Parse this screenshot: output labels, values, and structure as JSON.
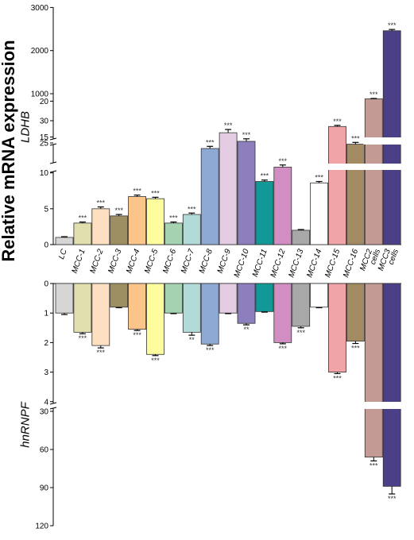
{
  "y_main_label": "Relative mRNA expression",
  "chart_data": [
    {
      "type": "bar",
      "gene": "LDHB",
      "ylabel": "LDHB",
      "y_ticks": [
        {
          "label": "3000",
          "value": 3000
        },
        {
          "label": "2000",
          "value": 2000
        },
        {
          "label": "1000",
          "value": 1000
        },
        {
          "label": "30",
          "value": 30
        },
        {
          "label": "25",
          "value": 25
        },
        {
          "label": "20",
          "value": 20
        },
        {
          "label": "15",
          "value": 15
        },
        {
          "label": "10",
          "value": 10
        },
        {
          "label": "5",
          "value": 5
        },
        {
          "label": "0",
          "value": 0
        }
      ],
      "axis_breaks": [
        [
          20,
          25
        ],
        [
          30,
          700
        ]
      ],
      "categories": [
        "LC",
        "MCC-1",
        "MCC-2",
        "MCC-3",
        "MCC-4",
        "MCC-5",
        "MCC-6",
        "MCC-7",
        "MCC-8",
        "MCC-9",
        "MCC-10",
        "MCC-11",
        "MCC-12",
        "MCC-13",
        "MCC-14",
        "MCC-15",
        "MCC-16",
        "MCC2 cells",
        "MCC3 cells"
      ],
      "values": [
        1.0,
        3.0,
        5.0,
        4.0,
        6.7,
        6.4,
        3.0,
        4.2,
        13.4,
        15.6,
        14.4,
        8.8,
        10.8,
        2.0,
        8.6,
        28.7,
        14.0,
        880,
        2460
      ],
      "errors": [
        0.1,
        0.15,
        0.25,
        0.2,
        0.2,
        0.2,
        0.15,
        0.2,
        0.3,
        0.45,
        0.35,
        0.2,
        0.3,
        0.1,
        0.2,
        0.25,
        0.25,
        10,
        30
      ],
      "significance": [
        "",
        "***",
        "***",
        "***",
        "***",
        "***",
        "***",
        "***",
        "***",
        "***",
        "***",
        "***",
        "***",
        "",
        "***",
        "***",
        "***",
        "***",
        "***"
      ]
    },
    {
      "type": "bar",
      "gene": "hnRNPF",
      "ylabel": "hnRNPF",
      "orientation": "inverted",
      "y_ticks": [
        {
          "label": "0",
          "value": 0
        },
        {
          "label": "1",
          "value": 1
        },
        {
          "label": "2",
          "value": 2
        },
        {
          "label": "3",
          "value": 3
        },
        {
          "label": "4",
          "value": 4
        },
        {
          "label": "30",
          "value": 30
        },
        {
          "label": "60",
          "value": 60
        },
        {
          "label": "90",
          "value": 90
        },
        {
          "label": "120",
          "value": 120
        }
      ],
      "axis_breaks": [
        [
          4,
          30
        ]
      ],
      "categories": [
        "LC",
        "MCC-1",
        "MCC-2",
        "MCC-3",
        "MCC-4",
        "MCC-5",
        "MCC-6",
        "MCC-7",
        "MCC-8",
        "MCC-9",
        "MCC-10",
        "MCC-11",
        "MCC-12",
        "MCC-13",
        "MCC-14",
        "MCC-15",
        "MCC-16",
        "MCC2 cells",
        "MCC3 cells"
      ],
      "values": [
        1.0,
        1.65,
        2.1,
        0.8,
        1.55,
        2.4,
        1.0,
        1.65,
        2.05,
        1.0,
        1.35,
        0.95,
        2.0,
        1.45,
        0.8,
        3.0,
        1.95,
        66,
        89
      ],
      "errors": [
        0.05,
        0.05,
        0.08,
        0.02,
        0.04,
        0.04,
        0.02,
        0.1,
        0.05,
        0.02,
        0.05,
        0.02,
        0.04,
        0.05,
        0.02,
        0.05,
        0.08,
        3,
        6
      ],
      "significance": [
        "",
        "***",
        "***",
        "",
        "***",
        "***",
        "",
        "**",
        "***",
        "",
        "**",
        "",
        "***",
        "***",
        "",
        "***",
        "***",
        "***",
        "***"
      ]
    }
  ],
  "bar_colors": [
    "#d6d6d6",
    "#e2dfae",
    "#fde0c1",
    "#9e8f63",
    "#fbc489",
    "#fdfd9e",
    "#a5d3b2",
    "#b0dbd8",
    "#8ea9d4",
    "#e4cce3",
    "#8d7fbd",
    "#139898",
    "#d28ec2",
    "#a8a8a8",
    "#ffffff",
    "#f1a4a7",
    "#a28a63",
    "#c49a95",
    "#4b3f87"
  ],
  "category_labels": [
    {
      "lines": [
        "LC"
      ]
    },
    {
      "lines": [
        "MCC-1"
      ]
    },
    {
      "lines": [
        "MCC-2"
      ]
    },
    {
      "lines": [
        "MCC-3"
      ]
    },
    {
      "lines": [
        "MCC-4"
      ]
    },
    {
      "lines": [
        "MCC-5"
      ]
    },
    {
      "lines": [
        "MCC-6"
      ]
    },
    {
      "lines": [
        "MCC-7"
      ]
    },
    {
      "lines": [
        "MCC-8"
      ]
    },
    {
      "lines": [
        "MCC-9"
      ]
    },
    {
      "lines": [
        "MCC-10"
      ]
    },
    {
      "lines": [
        "MCC-11"
      ]
    },
    {
      "lines": [
        "MCC-12"
      ]
    },
    {
      "lines": [
        "MCC-13"
      ]
    },
    {
      "lines": [
        "MCC-14"
      ]
    },
    {
      "lines": [
        "MCC-15"
      ]
    },
    {
      "lines": [
        "MCC-16"
      ]
    },
    {
      "lines": [
        "MCC2",
        "cells"
      ]
    },
    {
      "lines": [
        "MCC3",
        "cells"
      ]
    }
  ]
}
